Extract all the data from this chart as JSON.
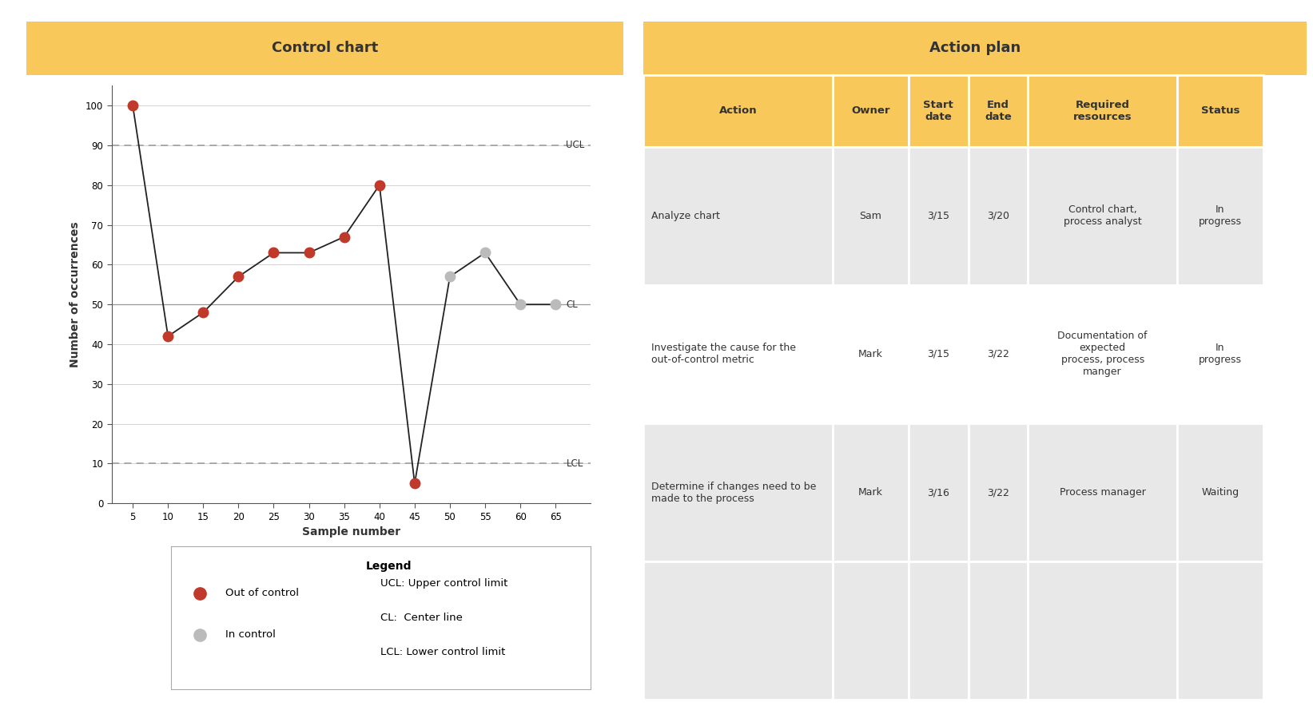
{
  "chart_title": "Control chart",
  "table_title": "Action plan",
  "header_color": "#F9C85A",
  "background_color": "#FFFFFF",
  "ucl": 90,
  "cl": 50,
  "lcl": 10,
  "x_values": [
    5,
    10,
    15,
    20,
    25,
    30,
    35,
    40,
    45,
    50,
    55,
    60,
    65
  ],
  "y_values": [
    100,
    42,
    48,
    57,
    63,
    63,
    67,
    80,
    5,
    57,
    63,
    50,
    50
  ],
  "out_of_control": [
    true,
    true,
    true,
    true,
    true,
    true,
    true,
    true,
    true,
    false,
    false,
    false,
    false
  ],
  "x_label": "Sample number",
  "y_label": "Number of occurrences",
  "ylim": [
    0,
    105
  ],
  "xlim": [
    2,
    70
  ],
  "x_ticks": [
    5,
    10,
    15,
    20,
    25,
    30,
    35,
    40,
    45,
    50,
    55,
    60,
    65
  ],
  "y_ticks": [
    0,
    10,
    20,
    30,
    40,
    50,
    60,
    70,
    80,
    90,
    100
  ],
  "out_of_control_color": "#C0392B",
  "in_control_color": "#BBBBBB",
  "line_color": "#222222",
  "ucl_label": "UCL",
  "cl_label": "CL",
  "lcl_label": "LCL",
  "legend_title": "Legend",
  "legend_out_label": "Out of control",
  "legend_in_label": "In control",
  "legend_ucl": "UCL: Upper control limit",
  "legend_cl": "CL:  Center line",
  "legend_lcl": "LCL: Lower control limit",
  "table_columns": [
    "Action",
    "Owner",
    "Start\ndate",
    "End\ndate",
    "Required\nresources",
    "Status"
  ],
  "table_col_widths": [
    0.285,
    0.115,
    0.09,
    0.09,
    0.225,
    0.13
  ],
  "table_rows": [
    [
      "Analyze chart",
      "Sam",
      "3/15",
      "3/20",
      "Control chart,\nprocess analyst",
      "In\nprogress"
    ],
    [
      "Investigate the cause for the\nout-of-control metric",
      "Mark",
      "3/15",
      "3/22",
      "Documentation of\nexpected\nprocess, process\nmanger",
      "In\nprogress"
    ],
    [
      "Determine if changes need to be\nmade to the process",
      "Mark",
      "3/16",
      "3/22",
      "Process manager",
      "Waiting"
    ],
    [
      "",
      "",
      "",
      "",
      "",
      ""
    ]
  ],
  "row_bg_colors": [
    "#E8E8E8",
    "#FFFFFF",
    "#E8E8E8",
    "#E8E8E8"
  ],
  "table_header_bg": "#F9C85A",
  "table_font_size": 9
}
